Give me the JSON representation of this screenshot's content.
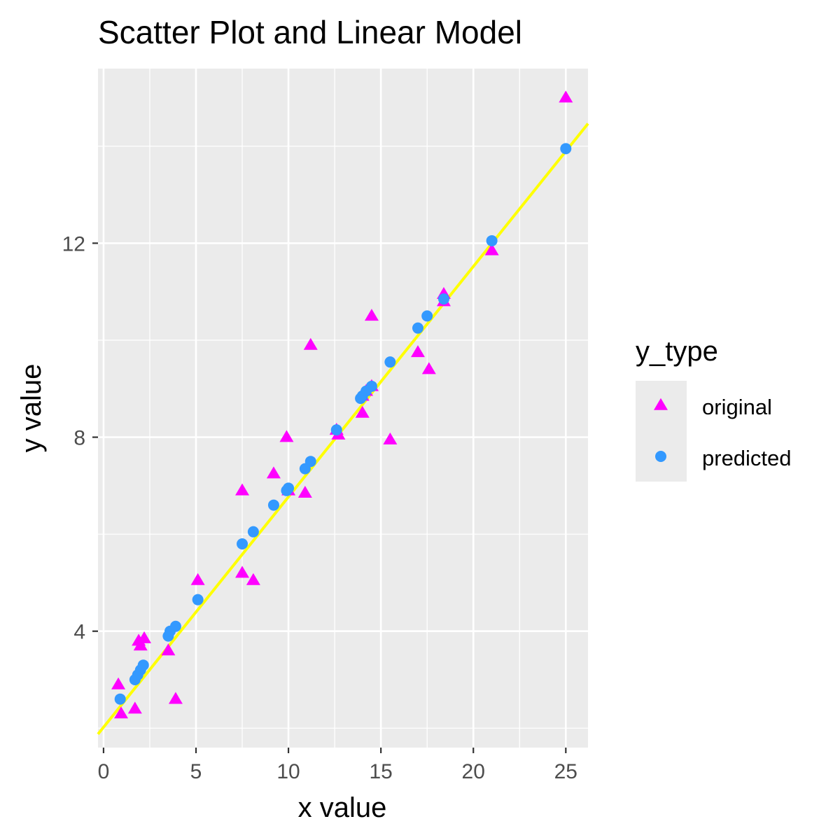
{
  "chart_data": {
    "type": "scatter",
    "title": "Scatter Plot and Linear Model",
    "xlabel": "x value",
    "ylabel": "y value",
    "xlim": [
      -0.3,
      26.2
    ],
    "ylim": [
      1.6,
      15.6
    ],
    "x_ticks": [
      0,
      5,
      10,
      15,
      20,
      25
    ],
    "y_ticks": [
      4,
      8,
      12
    ],
    "x_minor_ticks": [
      2.5,
      7.5,
      12.5,
      17.5,
      22.5
    ],
    "y_minor_ticks": [
      2,
      6,
      10,
      14
    ],
    "x_tick_labels": [
      "0",
      "5",
      "10",
      "15",
      "20",
      "25"
    ],
    "y_tick_labels": [
      "4",
      "8",
      "12"
    ],
    "grid": true,
    "background": "#ebebeb",
    "legend": {
      "title": "y_type",
      "position": "right",
      "entries": [
        {
          "label": "original",
          "shape": "triangle",
          "color": "#ff00ff"
        },
        {
          "label": "predicted",
          "shape": "circle",
          "color": "#3399ff"
        }
      ]
    },
    "fit_line": {
      "color": "#ffff00",
      "intercept": 2.02,
      "slope": 0.475,
      "x_range": [
        -0.3,
        26.2
      ]
    },
    "series": [
      {
        "name": "original",
        "shape": "triangle",
        "color": "#ff00ff",
        "x": [
          0.8,
          0.95,
          1.7,
          1.9,
          2.0,
          2.2,
          3.5,
          3.9,
          5.1,
          7.5,
          7.5,
          8.1,
          9.2,
          9.9,
          10.0,
          10.9,
          11.2,
          12.6,
          12.7,
          14.0,
          14.0,
          14.2,
          14.5,
          14.5,
          15.5,
          17.0,
          17.6,
          18.4,
          18.4,
          21.0,
          25.0
        ],
        "y": [
          2.9,
          2.3,
          2.4,
          3.8,
          3.7,
          3.85,
          3.6,
          2.6,
          5.05,
          6.9,
          5.2,
          5.05,
          7.25,
          8.0,
          6.9,
          6.85,
          9.9,
          8.15,
          8.05,
          8.85,
          8.5,
          8.95,
          9.05,
          10.5,
          7.95,
          9.75,
          9.4,
          10.8,
          10.95,
          11.85,
          15.0
        ]
      },
      {
        "name": "predicted",
        "shape": "circle",
        "color": "#3399ff",
        "x": [
          0.9,
          1.7,
          1.85,
          2.0,
          2.15,
          3.5,
          3.6,
          3.9,
          5.1,
          7.5,
          8.1,
          9.2,
          9.9,
          10.0,
          10.9,
          11.2,
          12.6,
          13.9,
          14.0,
          14.2,
          14.5,
          15.5,
          17.0,
          17.5,
          18.4,
          21.0,
          25.0
        ],
        "y": [
          2.6,
          3.0,
          3.1,
          3.2,
          3.3,
          3.9,
          4.0,
          4.1,
          4.65,
          5.8,
          6.05,
          6.6,
          6.9,
          6.95,
          7.35,
          7.5,
          8.15,
          8.8,
          8.85,
          8.95,
          9.05,
          9.55,
          10.25,
          10.5,
          10.85,
          12.05,
          13.95
        ]
      }
    ]
  }
}
